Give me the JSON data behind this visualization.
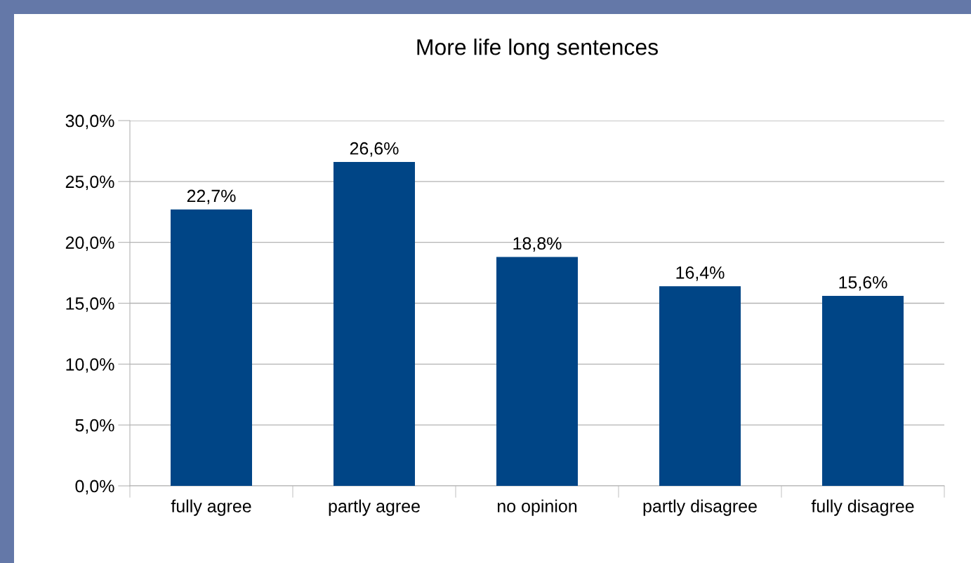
{
  "chart_data": {
    "type": "bar",
    "title": "More life long sentences",
    "categories": [
      "fully agree",
      "partly agree",
      "no opinion",
      "partly disagree",
      "fully disagree"
    ],
    "values": [
      22.7,
      26.6,
      18.8,
      16.4,
      15.6
    ],
    "value_labels": [
      "22,7%",
      "26,6%",
      "18,8%",
      "16,4%",
      "15,6%"
    ],
    "color": "#004586",
    "ylim": [
      0,
      30
    ],
    "yticks": [
      {
        "value": 0,
        "label": "0,0%"
      },
      {
        "value": 5,
        "label": "5,0%"
      },
      {
        "value": 10,
        "label": "10,0%"
      },
      {
        "value": 15,
        "label": "15,0%"
      },
      {
        "value": 20,
        "label": "20,0%"
      },
      {
        "value": 25,
        "label": "25,0%"
      },
      {
        "value": 30,
        "label": "30,0%"
      }
    ],
    "grid": "y",
    "legend": false
  }
}
